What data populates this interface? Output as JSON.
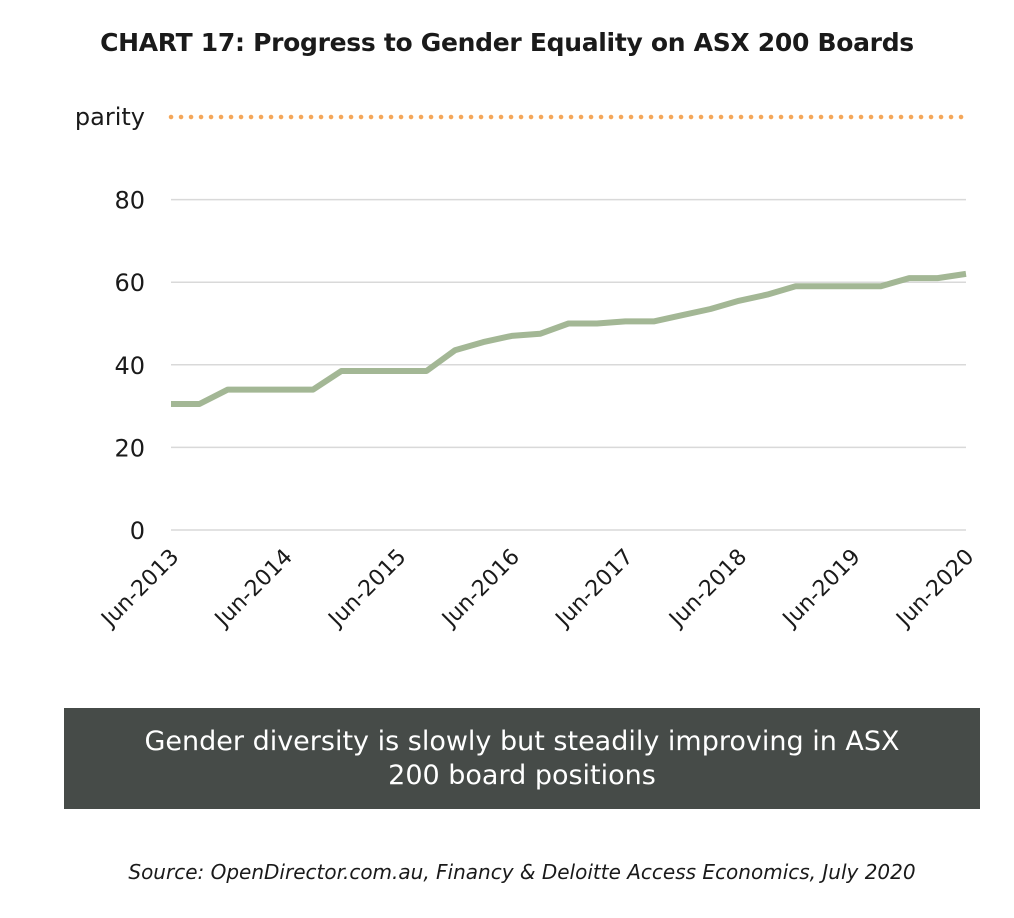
{
  "chart_data": {
    "type": "line",
    "title": "CHART 17: Progress to Gender Equality on ASX 200 Boards",
    "xlabel": "",
    "ylabel": "",
    "y_ticks": [
      "0",
      "20",
      "40",
      "60",
      "80",
      "parity"
    ],
    "ylim": [
      0,
      100
    ],
    "grid": true,
    "legend": "none",
    "x_tick_labels": [
      "Jun-2013",
      "Jun-2014",
      "Jun-2015",
      "Jun-2016",
      "Jun-2017",
      "Jun-2018",
      "Jun-2019",
      "Jun-2020"
    ],
    "series": [
      {
        "color": "#a3b795",
        "values": [
          30.5,
          30.5,
          34,
          34,
          34,
          34,
          38.5,
          38.5,
          38.5,
          38.5,
          43.5,
          45.5,
          47,
          47.5,
          50,
          50,
          50.5,
          50.5,
          52,
          53.5,
          55.5,
          57,
          59,
          59,
          59,
          59,
          61,
          61,
          62
        ]
      },
      {
        "color": "#f4a75a",
        "style": "dotted",
        "values": [
          100,
          100
        ]
      }
    ]
  },
  "callout": {
    "text": "Gender diversity is slowly but steadily improving in ASX 200 board positions"
  },
  "source": "Source: OpenDirector.com.au, Financy & Deloitte Access Economics, July 2020"
}
